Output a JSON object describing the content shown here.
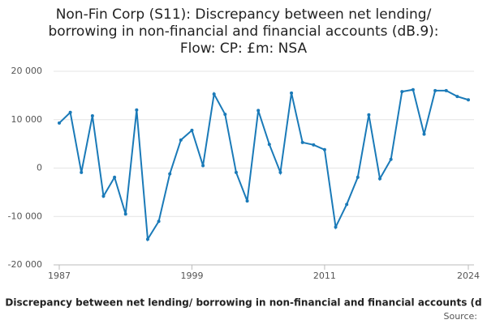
{
  "chart_data": {
    "type": "line",
    "title": [
      "Non-Fin Corp (S11): Discrepancy between net lending/",
      "borrowing in non-financial and financial accounts (dB.9):",
      "Flow: CP: £m: NSA"
    ],
    "x_label": "Discrepancy between net lending/ borrowing in non-financial and financial accounts (d",
    "source": "Source:",
    "x": [
      1987,
      1988,
      1989,
      1990,
      1991,
      1992,
      1993,
      1994,
      1995,
      1996,
      1997,
      1998,
      1999,
      2000,
      2001,
      2002,
      2003,
      2004,
      2005,
      2006,
      2007,
      2008,
      2009,
      2010,
      2011,
      2012,
      2013,
      2014,
      2015,
      2016,
      2017,
      2018,
      2019,
      2020,
      2021,
      2022,
      2023,
      2024
    ],
    "series": [
      {
        "name": "Discrepancy",
        "color": "#1a7ab8",
        "values": [
          9300,
          11500,
          -900,
          10800,
          -5800,
          -1900,
          -9500,
          12000,
          -14700,
          -11000,
          -1200,
          5800,
          7800,
          500,
          15300,
          11100,
          -900,
          -6800,
          11900,
          4900,
          -900,
          15500,
          5300,
          4800,
          3800,
          -12200,
          -7500,
          -1900,
          11000,
          -2200,
          1800,
          15800,
          16200,
          7000,
          16000,
          16000,
          14800,
          14100
        ]
      }
    ],
    "xlim": [
      1987,
      2024
    ],
    "xticks": [
      1987,
      1999,
      2011,
      2024
    ],
    "ylim": [
      -20000,
      20000
    ],
    "yticks": [
      {
        "value": -20000,
        "label": "-20 000"
      },
      {
        "value": -10000,
        "label": "-10 000"
      },
      0,
      {
        "value": 10000,
        "label": "10 000"
      },
      {
        "value": 20000,
        "label": "20 000"
      }
    ],
    "grid": true
  }
}
